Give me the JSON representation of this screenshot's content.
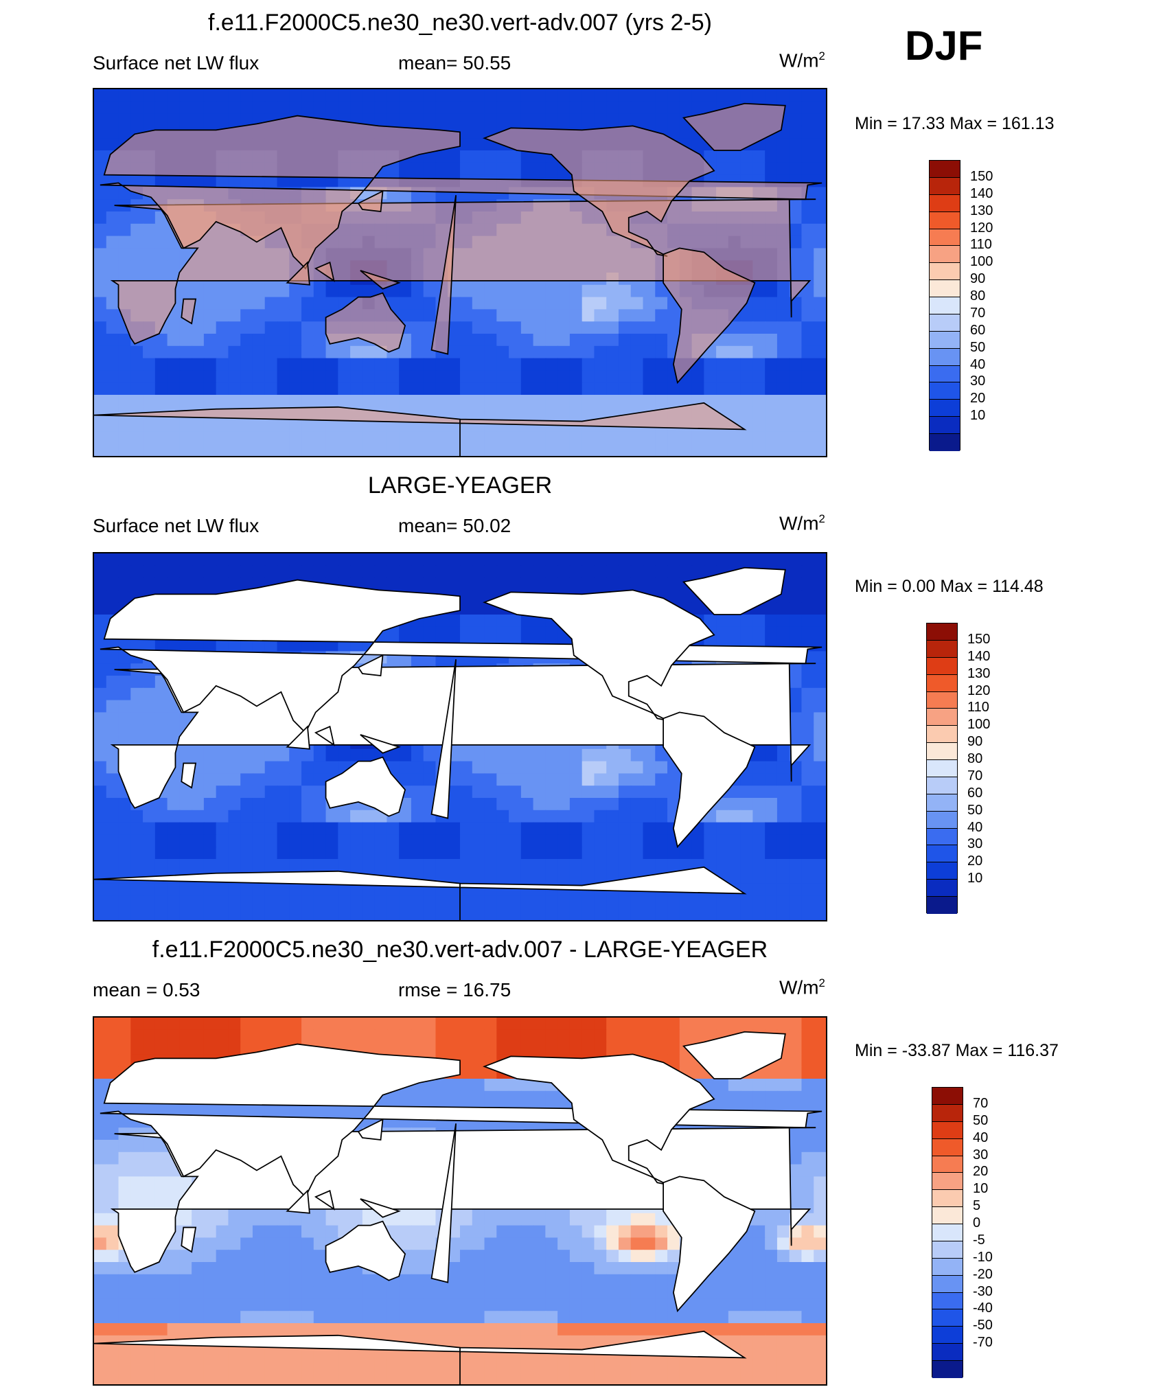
{
  "season": "DJF",
  "palettes": {
    "abs": [
      "#0a1a8c",
      "#0a2cc0",
      "#0d3ed8",
      "#1f55e8",
      "#3a6cf0",
      "#6893f3",
      "#93b3f6",
      "#b8ccf8",
      "#d9e6fb",
      "#fbe8d8",
      "#fbcbb0",
      "#f7a283",
      "#f67c52",
      "#ef5a2a",
      "#de3d15",
      "#b8250b",
      "#8c0e05"
    ],
    "diff": [
      "#0a1a8c",
      "#0a2cc0",
      "#0d3ed8",
      "#1f55e8",
      "#3a6cf0",
      "#6893f3",
      "#93b3f6",
      "#b8ccf8",
      "#d9e6fb",
      "#fbe8d8",
      "#fbcbb0",
      "#f7a283",
      "#f67c52",
      "#ef5a2a",
      "#de3d15",
      "#b8250b",
      "#8c0e05"
    ]
  },
  "panels": [
    {
      "title": "f.e11.F2000C5.ne30_ne30.vert-adv.007 (yrs 2-5)",
      "left_label": "Surface net LW flux",
      "center_label": "mean=  50.55",
      "units": "W/m",
      "units_sup": "2",
      "minmax": "Min =  17.33 Max = 161.13",
      "field": "model",
      "levels": [
        "150",
        "140",
        "130",
        "120",
        "110",
        "100",
        "90",
        "80",
        "70",
        "60",
        "50",
        "40",
        "30",
        "20",
        "10"
      ]
    },
    {
      "title": "LARGE-YEAGER",
      "left_label": "Surface net LW flux",
      "center_label": "mean=  50.02",
      "units": "W/m",
      "units_sup": "2",
      "minmax": "Min =   0.00 Max = 114.48",
      "field": "obs",
      "levels": [
        "150",
        "140",
        "130",
        "120",
        "110",
        "100",
        "90",
        "80",
        "70",
        "60",
        "50",
        "40",
        "30",
        "20",
        "10"
      ]
    },
    {
      "title": "f.e11.F2000C5.ne30_ne30.vert-adv.007 - LARGE-YEAGER",
      "left_label": "mean =    0.53",
      "center_label": "rmse =  16.75",
      "units": "W/m",
      "units_sup": "2",
      "minmax": "Min = -33.87 Max = 116.37",
      "field": "diff",
      "levels": [
        "70",
        "50",
        "40",
        "30",
        "20",
        "10",
        "5",
        "0",
        "-5",
        "-10",
        "-20",
        "-30",
        "-40",
        "-50",
        "-70"
      ]
    }
  ]
}
